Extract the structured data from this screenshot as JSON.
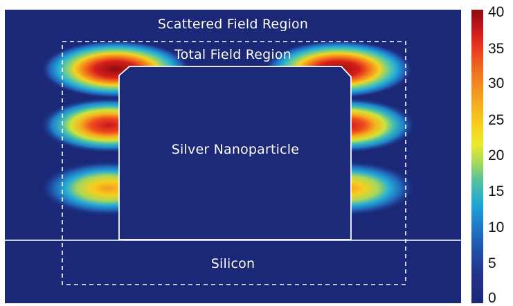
{
  "labels": {
    "scattered_field": "Scattered Field Region",
    "total_field": "Total Field Region",
    "nanoparticle": "Silver Nanoparticle",
    "substrate": "Silicon"
  },
  "colorbar": {
    "ticks": [
      "40",
      "35",
      "30",
      "25",
      "20",
      "15",
      "10",
      "5",
      "0"
    ],
    "min": 0,
    "max": 40,
    "colormap": "jet",
    "colors": [
      "#8a0d10",
      "#e8321e",
      "#f4a21f",
      "#e9ea2a",
      "#55c39a",
      "#1ea9d6",
      "#2150a8",
      "#1b2878"
    ]
  }
}
